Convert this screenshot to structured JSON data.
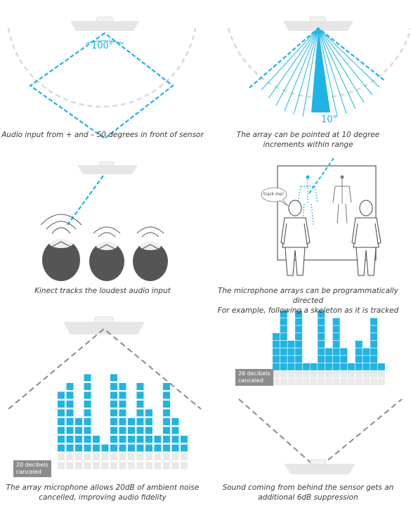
{
  "colors": {
    "accent": "#1fb4e6",
    "sensor": "#e6e6e6",
    "dashed_arc": "#d9d9d9",
    "dashed_line": "#8a8a8a",
    "empty_cell": "#e9e9e9",
    "label_bg": "#8c8c8c"
  },
  "panel1": {
    "angle": "100°",
    "caption": "Audio input from + and – 50  degrees in front of sensor"
  },
  "panel2": {
    "angle": "10°",
    "caption_line1": "The array can be pointed at 10 degree",
    "caption_line2": "increments within range"
  },
  "panel3": {
    "caption": "Kinect tracks the loudest audio input"
  },
  "panel4": {
    "bubble": "track me!",
    "caption_line1": "The microphone arrays can be programmatically directed",
    "caption_line2": "For example, following a skeleton as it is tracked"
  },
  "panel5": {
    "label_line1": "20 decibels",
    "label_line2": "canceled",
    "caption_line1": "The array microphone allows 20dB of ambient noise",
    "caption_line2": "cancelled, improving audio fidelity",
    "levels": [
      7,
      8,
      4,
      9,
      2,
      1,
      9,
      8,
      4,
      8,
      5,
      2,
      8,
      4,
      2
    ]
  },
  "panel6": {
    "label_line1": "26 decibels",
    "label_line2": "canceled",
    "caption_line1": "Sound coming from behind the sensor gets an",
    "caption_line2": "additional 6dB suppression",
    "levels": [
      5,
      8,
      4,
      8,
      1,
      1,
      8,
      3,
      7,
      3,
      1,
      4,
      3,
      7,
      1
    ]
  }
}
